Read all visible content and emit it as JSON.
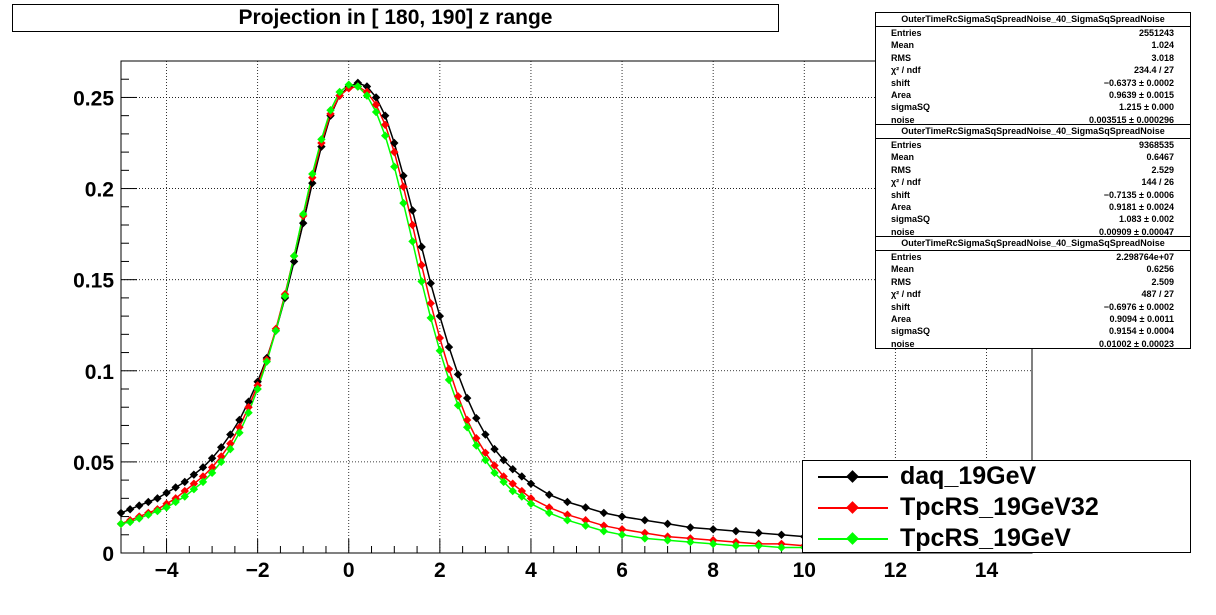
{
  "title": "Projection in [ 180, 190] z range",
  "stats_boxes": [
    {
      "title": "OuterTimeRcSigmaSqSpreadNoise_40_SigmaSqSpreadNoise",
      "rows": [
        {
          "key": "Entries",
          "value": "2551243"
        },
        {
          "key": "Mean",
          "value": "1.024"
        },
        {
          "key": "RMS",
          "value": "3.018"
        },
        {
          "key": "χ² / ndf",
          "value": "234.4 / 27"
        },
        {
          "key": "shift",
          "value": "−0.6373 ± 0.0002"
        },
        {
          "key": "Area",
          "value": "0.9639 ± 0.0015"
        },
        {
          "key": "sigmaSQ",
          "value": "1.215 ± 0.000"
        },
        {
          "key": "noise",
          "value": "0.003515 ± 0.000296"
        }
      ]
    },
    {
      "title": "OuterTimeRcSigmaSqSpreadNoise_40_SigmaSqSpreadNoise",
      "rows": [
        {
          "key": "Entries",
          "value": "9368535"
        },
        {
          "key": "Mean",
          "value": "0.6467"
        },
        {
          "key": "RMS",
          "value": "2.529"
        },
        {
          "key": "χ² / ndf",
          "value": "144 / 26"
        },
        {
          "key": "shift",
          "value": "−0.7135 ± 0.0006"
        },
        {
          "key": "Area",
          "value": "0.9181 ± 0.0024"
        },
        {
          "key": "sigmaSQ",
          "value": "1.083 ± 0.002"
        },
        {
          "key": "noise",
          "value": "0.00909 ± 0.00047"
        }
      ]
    },
    {
      "title": "OuterTimeRcSigmaSqSpreadNoise_40_SigmaSqSpreadNoise",
      "rows": [
        {
          "key": "Entries",
          "value": "2.298764e+07"
        },
        {
          "key": "Mean",
          "value": "0.6256"
        },
        {
          "key": "RMS",
          "value": "2.509"
        },
        {
          "key": "χ² / ndf",
          "value": "487 / 27"
        },
        {
          "key": "shift",
          "value": "−0.6976 ± 0.0002"
        },
        {
          "key": "Area",
          "value": "0.9094 ± 0.0011"
        },
        {
          "key": "sigmaSQ",
          "value": "0.9154 ± 0.0004"
        },
        {
          "key": "noise",
          "value": "0.01002 ± 0.00023"
        }
      ]
    }
  ],
  "legend": [
    {
      "label": "daq_19GeV",
      "color": "#000000"
    },
    {
      "label": "TpcRS_19GeV32",
      "color": "#ff0000"
    },
    {
      "label": "TpcRS_19GeV",
      "color": "#00ff00"
    }
  ],
  "chart_data": {
    "type": "scatter",
    "title": "Projection in [ 180, 190] z range",
    "xlabel": "",
    "ylabel": "",
    "xlim": [
      -5,
      15
    ],
    "ylim": [
      0,
      0.27
    ],
    "x_ticks": [
      "−4",
      "−2",
      "0",
      "2",
      "4",
      "6",
      "8",
      "10",
      "12",
      "14"
    ],
    "y_ticks": [
      "0",
      "0.05",
      "0.1",
      "0.15",
      "0.2",
      "0.25"
    ],
    "grid": true,
    "legend_position": "bottom-right",
    "series": [
      {
        "name": "daq_19GeV",
        "color": "#000000",
        "x": [
          -5.0,
          -4.8,
          -4.6,
          -4.4,
          -4.2,
          -4.0,
          -3.8,
          -3.6,
          -3.4,
          -3.2,
          -3.0,
          -2.8,
          -2.6,
          -2.4,
          -2.2,
          -2.0,
          -1.8,
          -1.6,
          -1.4,
          -1.2,
          -1.0,
          -0.8,
          -0.6,
          -0.4,
          -0.2,
          0.0,
          0.2,
          0.4,
          0.6,
          0.8,
          1.0,
          1.2,
          1.4,
          1.6,
          1.8,
          2.0,
          2.2,
          2.4,
          2.6,
          2.8,
          3.0,
          3.2,
          3.4,
          3.6,
          3.8,
          4.0,
          4.4,
          4.8,
          5.2,
          5.6,
          6.0,
          6.5,
          7.0,
          7.5,
          8.0,
          8.5,
          9.0,
          9.5,
          10.0
        ],
        "y": [
          0.022,
          0.024,
          0.026,
          0.028,
          0.03,
          0.033,
          0.036,
          0.039,
          0.043,
          0.047,
          0.052,
          0.058,
          0.065,
          0.073,
          0.083,
          0.094,
          0.107,
          0.122,
          0.14,
          0.16,
          0.181,
          0.203,
          0.223,
          0.24,
          0.251,
          0.256,
          0.258,
          0.256,
          0.25,
          0.24,
          0.225,
          0.207,
          0.188,
          0.168,
          0.148,
          0.13,
          0.113,
          0.098,
          0.085,
          0.074,
          0.065,
          0.057,
          0.051,
          0.046,
          0.042,
          0.038,
          0.032,
          0.028,
          0.025,
          0.022,
          0.02,
          0.018,
          0.016,
          0.014,
          0.013,
          0.012,
          0.011,
          0.01,
          0.009
        ]
      },
      {
        "name": "TpcRS_19GeV32",
        "color": "#ff0000",
        "x": [
          -5.0,
          -4.8,
          -4.6,
          -4.4,
          -4.2,
          -4.0,
          -3.8,
          -3.6,
          -3.4,
          -3.2,
          -3.0,
          -2.8,
          -2.6,
          -2.4,
          -2.2,
          -2.0,
          -1.8,
          -1.6,
          -1.4,
          -1.2,
          -1.0,
          -0.8,
          -0.6,
          -0.4,
          -0.2,
          0.0,
          0.2,
          0.4,
          0.6,
          0.8,
          1.0,
          1.2,
          1.4,
          1.6,
          1.8,
          2.0,
          2.2,
          2.4,
          2.6,
          2.8,
          3.0,
          3.2,
          3.4,
          3.6,
          3.8,
          4.0,
          4.4,
          4.8,
          5.2,
          5.6,
          6.0,
          6.5,
          7.0,
          7.5,
          8.0,
          8.5,
          9.0,
          9.5,
          10.0
        ],
        "y": [
          0.016,
          0.018,
          0.02,
          0.022,
          0.024,
          0.027,
          0.03,
          0.034,
          0.038,
          0.042,
          0.047,
          0.053,
          0.06,
          0.069,
          0.08,
          0.092,
          0.106,
          0.123,
          0.142,
          0.163,
          0.185,
          0.206,
          0.225,
          0.241,
          0.251,
          0.255,
          0.256,
          0.253,
          0.246,
          0.235,
          0.22,
          0.201,
          0.18,
          0.158,
          0.137,
          0.118,
          0.101,
          0.086,
          0.073,
          0.063,
          0.055,
          0.048,
          0.042,
          0.038,
          0.034,
          0.03,
          0.025,
          0.021,
          0.018,
          0.015,
          0.013,
          0.011,
          0.009,
          0.008,
          0.007,
          0.006,
          0.005,
          0.005,
          0.004
        ]
      },
      {
        "name": "TpcRS_19GeV",
        "color": "#00ff00",
        "x": [
          -5.0,
          -4.8,
          -4.6,
          -4.4,
          -4.2,
          -4.0,
          -3.8,
          -3.6,
          -3.4,
          -3.2,
          -3.0,
          -2.8,
          -2.6,
          -2.4,
          -2.2,
          -2.0,
          -1.8,
          -1.6,
          -1.4,
          -1.2,
          -1.0,
          -0.8,
          -0.6,
          -0.4,
          -0.2,
          0.0,
          0.2,
          0.4,
          0.6,
          0.8,
          1.0,
          1.2,
          1.4,
          1.6,
          1.8,
          2.0,
          2.2,
          2.4,
          2.6,
          2.8,
          3.0,
          3.2,
          3.4,
          3.6,
          3.8,
          4.0,
          4.4,
          4.8,
          5.2,
          5.6,
          6.0,
          6.5,
          7.0,
          7.5,
          8.0,
          8.5,
          9.0,
          9.5,
          10.0
        ],
        "y": [
          0.016,
          0.017,
          0.019,
          0.021,
          0.023,
          0.025,
          0.028,
          0.031,
          0.035,
          0.039,
          0.044,
          0.05,
          0.057,
          0.066,
          0.077,
          0.09,
          0.105,
          0.122,
          0.141,
          0.163,
          0.186,
          0.208,
          0.227,
          0.243,
          0.253,
          0.257,
          0.256,
          0.251,
          0.242,
          0.229,
          0.212,
          0.192,
          0.171,
          0.149,
          0.129,
          0.111,
          0.095,
          0.081,
          0.069,
          0.059,
          0.051,
          0.044,
          0.039,
          0.034,
          0.031,
          0.027,
          0.022,
          0.018,
          0.015,
          0.012,
          0.01,
          0.008,
          0.007,
          0.006,
          0.005,
          0.004,
          0.004,
          0.003,
          0.003
        ]
      }
    ]
  }
}
